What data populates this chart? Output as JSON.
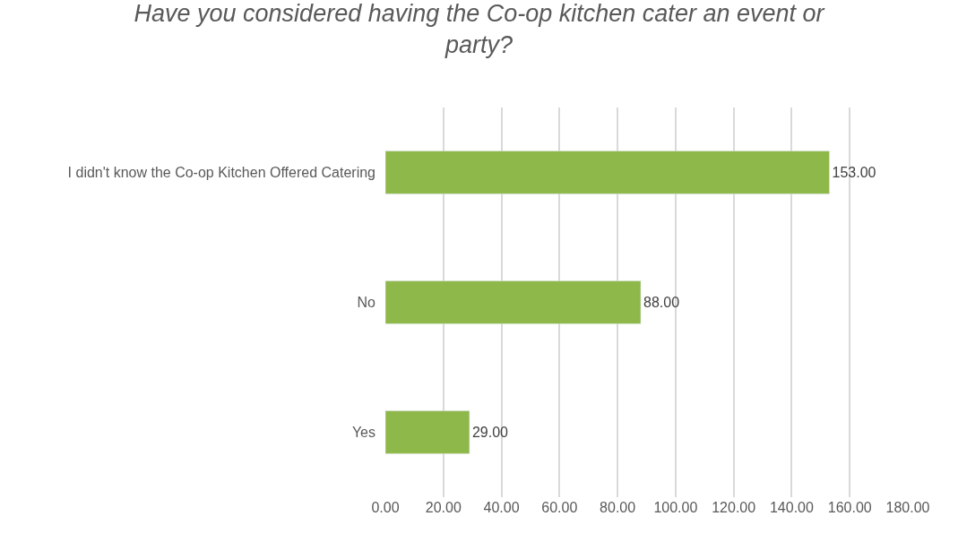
{
  "chart_data": {
    "type": "bar",
    "orientation": "horizontal",
    "title": "Have you considered having the Co-op kitchen cater an event or party?",
    "categories": [
      "I didn't know the Co-op Kitchen Offered Catering",
      "No",
      "Yes"
    ],
    "values": [
      153,
      88,
      29
    ],
    "color": "#8fb84b",
    "value_labels": [
      "153.00",
      "88.00",
      "29.00"
    ],
    "xlim": [
      0,
      180
    ],
    "xticks": [
      {
        "value": 0,
        "label": "0.00"
      },
      {
        "value": 20,
        "label": "20.00"
      },
      {
        "value": 40,
        "label": "40.00"
      },
      {
        "value": 60,
        "label": "60.00"
      },
      {
        "value": 80,
        "label": "80.00"
      },
      {
        "value": 100,
        "label": "100.00"
      },
      {
        "value": 120,
        "label": "120.00"
      },
      {
        "value": 140,
        "label": "140.00"
      },
      {
        "value": 160,
        "label": "160.00"
      },
      {
        "value": 180,
        "label": "180.00"
      }
    ],
    "grid": "x"
  }
}
